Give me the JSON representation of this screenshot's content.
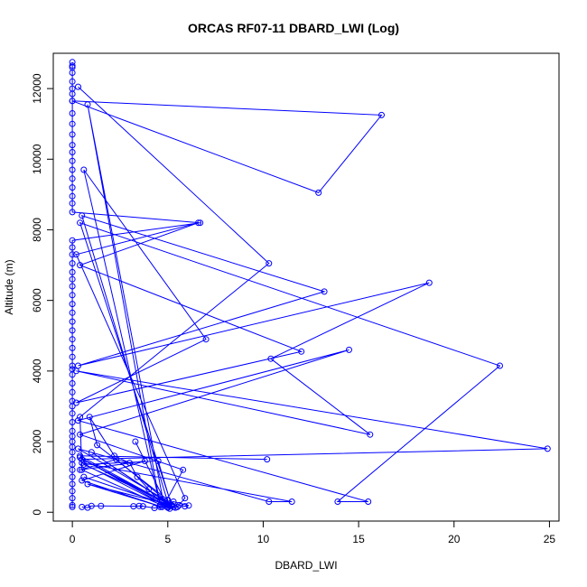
{
  "chart_data": {
    "type": "line",
    "title": "ORCAS RF07-11 DBARD_LWI (Log)",
    "xlabel": "DBARD_LWI",
    "ylabel": "Altitude (m)",
    "xlim": [
      -1.0,
      25.5
    ],
    "ylim": [
      -250,
      13000
    ],
    "x_ticks": [
      0,
      5,
      10,
      15,
      20,
      25
    ],
    "y_ticks": [
      0,
      2000,
      4000,
      6000,
      8000,
      10000,
      12000
    ],
    "grid": false,
    "line_color": "#0000ff",
    "marker": "open-circle",
    "series": [
      {
        "points": [
          [
            0.0,
            12750
          ],
          [
            0.0,
            12650
          ],
          [
            0.0,
            12600
          ],
          [
            0.0,
            12450
          ],
          [
            0.0,
            12200
          ],
          [
            0.0,
            12000
          ],
          [
            0.0,
            11850
          ],
          [
            0.0,
            11650
          ],
          [
            16.2,
            11250
          ],
          [
            12.9,
            9050
          ],
          [
            0.0,
            11650
          ],
          [
            0.0,
            11300
          ],
          [
            0.0,
            11000
          ],
          [
            0.0,
            10700
          ],
          [
            0.0,
            10400
          ],
          [
            0.0,
            10200
          ],
          [
            0.0,
            9950
          ],
          [
            0.0,
            9700
          ],
          [
            0.0,
            9450
          ],
          [
            0.0,
            9200
          ],
          [
            0.0,
            8950
          ],
          [
            0.0,
            8750
          ],
          [
            0.0,
            8500
          ],
          [
            6.7,
            8200
          ],
          [
            0.0,
            7700
          ],
          [
            0.0,
            7500
          ],
          [
            0.0,
            7300
          ],
          [
            0.0,
            7050
          ],
          [
            0.0,
            6800
          ],
          [
            0.0,
            6600
          ],
          [
            0.0,
            6400
          ],
          [
            0.0,
            6150
          ],
          [
            0.0,
            5900
          ],
          [
            0.0,
            5650
          ],
          [
            0.0,
            5400
          ],
          [
            0.0,
            5150
          ],
          [
            0.0,
            4900
          ],
          [
            0.0,
            4650
          ],
          [
            0.0,
            4400
          ],
          [
            0.0,
            4150
          ],
          [
            0.0,
            4050
          ],
          [
            0.0,
            3900
          ],
          [
            0.0,
            3650
          ],
          [
            0.0,
            3400
          ],
          [
            0.0,
            3150
          ],
          [
            0.0,
            3000
          ],
          [
            0.0,
            2800
          ],
          [
            0.0,
            2550
          ],
          [
            0.0,
            2300
          ],
          [
            0.0,
            2150
          ],
          [
            0.0,
            2000
          ],
          [
            0.0,
            1850
          ],
          [
            0.0,
            1700
          ],
          [
            0.0,
            1500
          ],
          [
            0.0,
            1350
          ],
          [
            0.0,
            1200
          ],
          [
            0.0,
            1000
          ],
          [
            0.0,
            800
          ],
          [
            0.0,
            600
          ],
          [
            0.0,
            400
          ],
          [
            0.0,
            200
          ],
          [
            0.0,
            150
          ]
        ]
      },
      {
        "points": [
          [
            0.3,
            12050
          ],
          [
            10.3,
            7050
          ],
          [
            0.4,
            2700
          ],
          [
            0.5,
            1200
          ],
          [
            5.1,
            100
          ],
          [
            0.5,
            8400
          ],
          [
            13.2,
            6250
          ],
          [
            0.3,
            4150
          ],
          [
            18.7,
            6500
          ],
          [
            10.4,
            4350
          ],
          [
            15.6,
            2200
          ],
          [
            0.2,
            4000
          ],
          [
            24.9,
            1800
          ],
          [
            0.5,
            1500
          ],
          [
            5.2,
            200
          ],
          [
            0.4,
            8200
          ],
          [
            22.4,
            4150
          ],
          [
            13.9,
            300
          ],
          [
            15.5,
            300
          ],
          [
            0.3,
            2600
          ],
          [
            14.5,
            4600
          ],
          [
            0.4,
            2200
          ],
          [
            5.8,
            1200
          ],
          [
            4.8,
            200
          ],
          [
            0.8,
            11550
          ],
          [
            4.6,
            200
          ],
          [
            0.6,
            9700
          ],
          [
            7.0,
            4900
          ],
          [
            0.2,
            3100
          ],
          [
            12.0,
            4550
          ],
          [
            0.4,
            7000
          ],
          [
            6.6,
            8200
          ],
          [
            0.2,
            7300
          ],
          [
            5.9,
            400
          ],
          [
            5.5,
            150
          ],
          [
            0.3,
            1800
          ],
          [
            10.3,
            300
          ],
          [
            11.5,
            300
          ],
          [
            0.5,
            1400
          ],
          [
            5.0,
            150
          ],
          [
            3.3,
            2000
          ],
          [
            5.0,
            150
          ],
          [
            0.4,
            1550
          ],
          [
            5.0,
            200
          ],
          [
            0.6,
            1000
          ],
          [
            5.3,
            150
          ],
          [
            1.0,
            1700
          ],
          [
            5.2,
            200
          ],
          [
            0.8,
            800
          ],
          [
            4.7,
            150
          ],
          [
            0.5,
            900
          ],
          [
            3.8,
            1450
          ],
          [
            0.4,
            1200
          ],
          [
            2.3,
            1500
          ],
          [
            5.1,
            250
          ],
          [
            0.6,
            1350
          ],
          [
            4.5,
            1450
          ],
          [
            5.2,
            180
          ],
          [
            0.4,
            1600
          ],
          [
            10.2,
            1500
          ]
        ]
      },
      {
        "points": [
          [
            0.5,
            150
          ],
          [
            0.8,
            130
          ],
          [
            1.0,
            180
          ],
          [
            1.5,
            180
          ],
          [
            3.2,
            170
          ],
          [
            3.5,
            180
          ],
          [
            3.7,
            170
          ],
          [
            4.3,
            120
          ],
          [
            4.6,
            150
          ],
          [
            5.4,
            130
          ],
          [
            5.6,
            200
          ],
          [
            5.9,
            170
          ],
          [
            6.1,
            190
          ],
          [
            5.3,
            300
          ],
          [
            4.9,
            250
          ],
          [
            5.0,
            350
          ],
          [
            1.3,
            1900
          ],
          [
            0.9,
            2700
          ],
          [
            2.2,
            1600
          ],
          [
            3.0,
            1400
          ],
          [
            3.4,
            1000
          ],
          [
            4.0,
            650
          ],
          [
            4.4,
            400
          ],
          [
            5.0,
            130
          ]
        ]
      }
    ]
  }
}
